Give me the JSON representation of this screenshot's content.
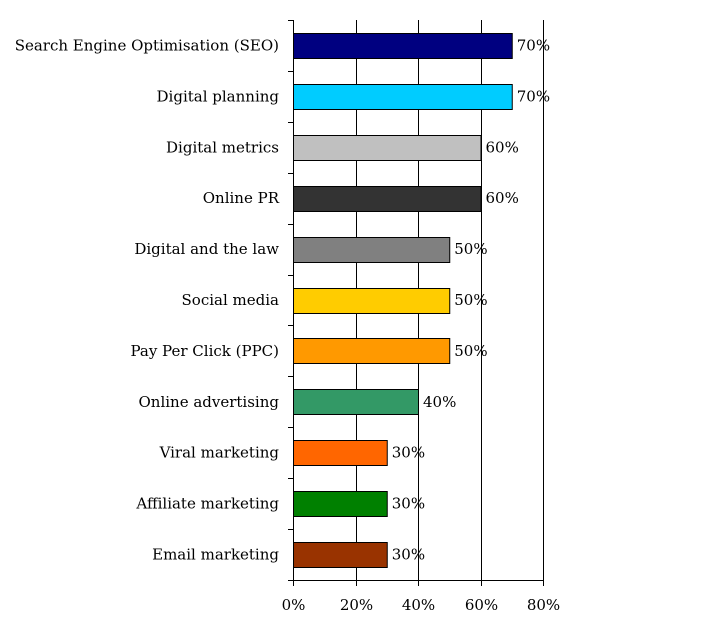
{
  "chart_data": {
    "type": "bar",
    "orientation": "horizontal",
    "title": "",
    "xlabel": "",
    "ylabel": "",
    "xlim": [
      0,
      80
    ],
    "x_ticks": [
      "0%",
      "20%",
      "40%",
      "60%",
      "80%"
    ],
    "grid": "vertical",
    "legend": "none",
    "value_suffix": "%",
    "categories": [
      "Search Engine Optimisation (SEO)",
      "Digital planning",
      "Digital metrics",
      "Online PR",
      "Digital and the law",
      "Social media",
      "Pay Per Click (PPC)",
      "Online advertising",
      "Viral marketing",
      "Affiliate marketing",
      "Email marketing"
    ],
    "values": [
      70,
      70,
      60,
      60,
      50,
      50,
      50,
      40,
      30,
      30,
      30
    ],
    "value_labels": [
      "70%",
      "70%",
      "60%",
      "60%",
      "50%",
      "50%",
      "50%",
      "40%",
      "30%",
      "30%",
      "30%"
    ],
    "colors": [
      "#000080",
      "#00ccff",
      "#c0c0c0",
      "#333333",
      "#808080",
      "#ffcc00",
      "#ff9900",
      "#339966",
      "#ff6600",
      "#008000",
      "#993300"
    ]
  }
}
